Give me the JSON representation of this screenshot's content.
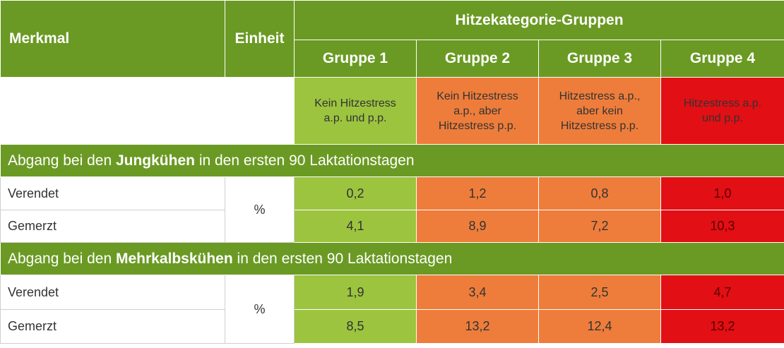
{
  "header": {
    "merkmal": "Merkmal",
    "einheit": "Einheit",
    "group_title": "Hitzekategorie-Gruppen",
    "groups": [
      {
        "name": "Gruppe 1",
        "line1": "Kein Hitzestress",
        "line2": "a.p. und p.p.",
        "line3": "",
        "color": "#9cc43f"
      },
      {
        "name": "Gruppe 2",
        "line1": "Kein Hitzestress",
        "line2": "a.p., aber",
        "line3": "Hitzestress p.p.",
        "color": "#ee7d3b"
      },
      {
        "name": "Gruppe 3",
        "line1": "Hitzestress a.p.,",
        "line2": "aber kein",
        "line3": "Hitzestress p.p.",
        "color": "#ee7d3b"
      },
      {
        "name": "Gruppe 4",
        "line1": "Hitzestress a.p.",
        "line2": "und p.p.",
        "line3": "",
        "color": "#e20f14"
      }
    ]
  },
  "sections": [
    {
      "prefix": "Abgang bei den ",
      "bold": "Jungkühen",
      "suffix": " in den ersten 90 Laktationstagen",
      "unit": "%",
      "rows": [
        {
          "label": "Verendet",
          "values": [
            "0,2",
            "1,2",
            "0,8",
            "1,0"
          ]
        },
        {
          "label": "Gemerzt",
          "values": [
            "4,1",
            "8,9",
            "7,2",
            "10,3"
          ]
        }
      ]
    },
    {
      "prefix": "Abgang bei den ",
      "bold": "Mehrkalbskühen",
      "suffix": " in den ersten 90 Laktationstagen",
      "unit": "%",
      "rows": [
        {
          "label": "Verendet",
          "values": [
            "1,9",
            "3,4",
            "2,5",
            "4,7"
          ]
        },
        {
          "label": "Gemerzt",
          "values": [
            "8,5",
            "13,2",
            "12,4",
            "13,2"
          ]
        }
      ]
    }
  ],
  "colors": {
    "header_green": "#6a9a23",
    "group1": "#9cc43f",
    "group2": "#ee7d3b",
    "group3": "#ee7d3b",
    "group4": "#e20f14"
  }
}
